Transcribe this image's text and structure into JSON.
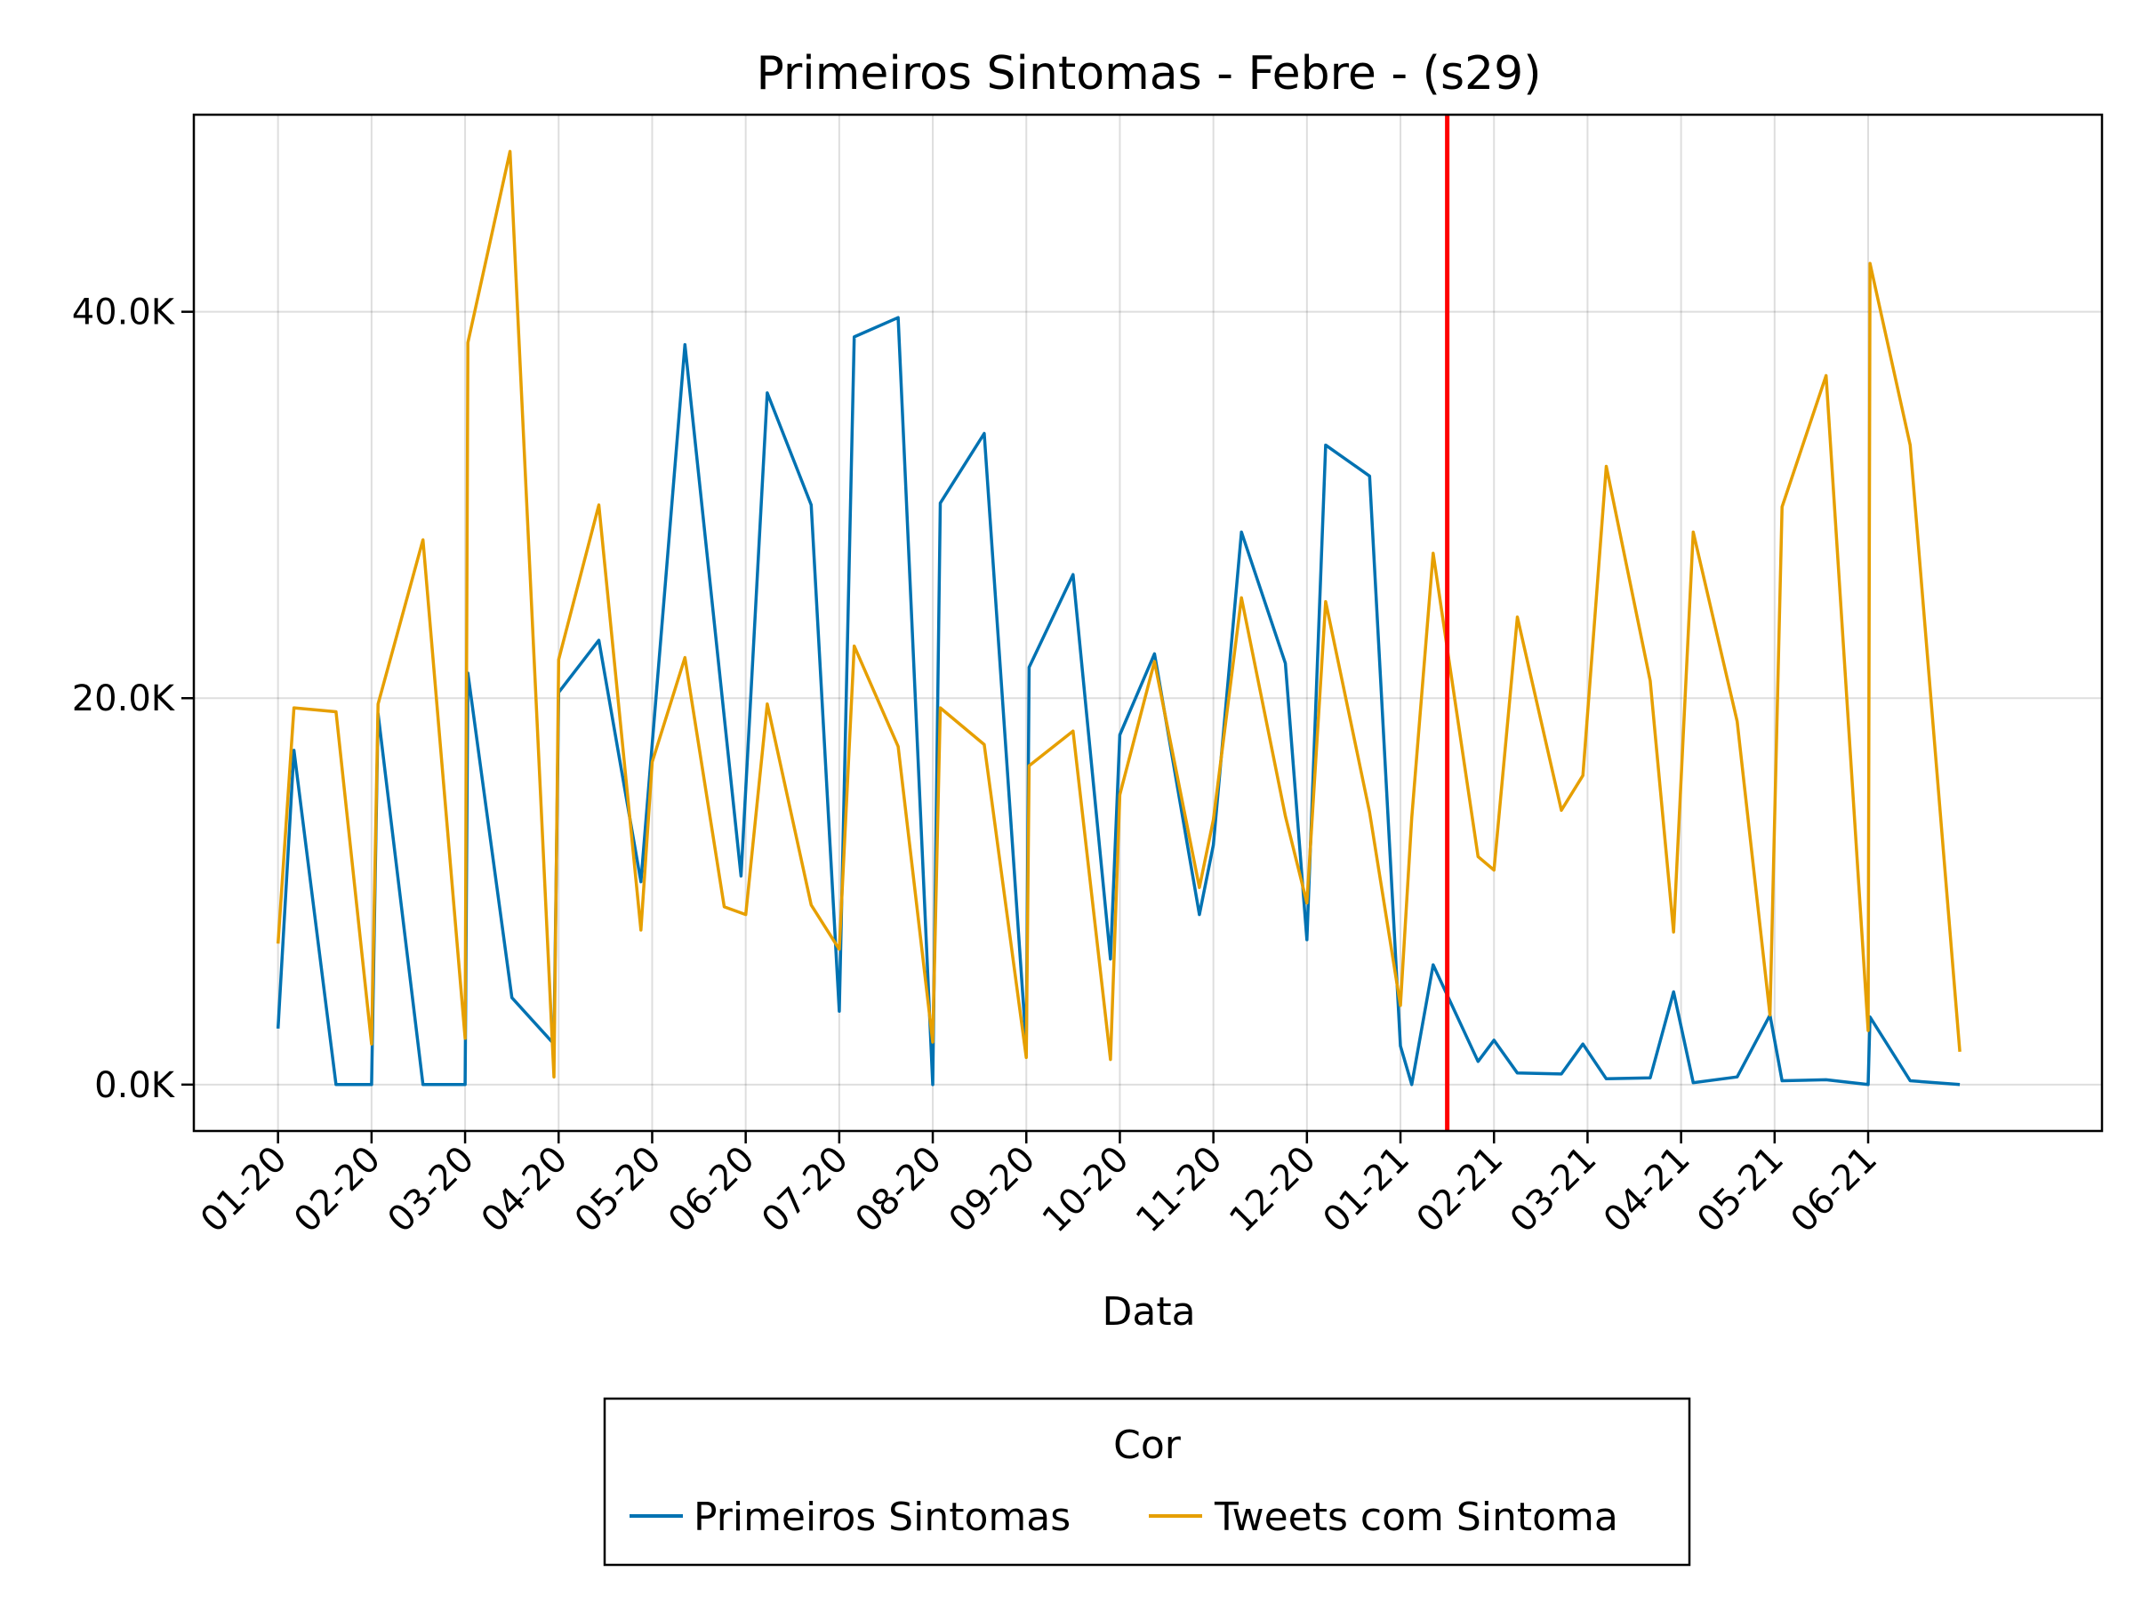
{
  "chart_data": {
    "type": "line",
    "title": "Primeiros Sintomas - Febre - (s29)",
    "xlabel": "Data",
    "ylabel": "",
    "x_tick_labels": [
      "01-20",
      "02-20",
      "03-20",
      "04-20",
      "05-20",
      "06-20",
      "07-20",
      "08-20",
      "09-20",
      "10-20",
      "11-20",
      "12-20",
      "01-21",
      "02-21",
      "03-21",
      "04-21",
      "05-21",
      "06-21"
    ],
    "y_tick_labels": [
      "0.0K",
      "20.0K",
      "40.0K"
    ],
    "y_tick_values": [
      0,
      20000,
      40000
    ],
    "ylim": [
      -2400,
      50200
    ],
    "xlim": [
      -0.9,
      19.5
    ],
    "grid": true,
    "legend_title": "Cor",
    "legend_position": "bottom",
    "marker_line": {
      "x": 12.5,
      "color": "#ff0000"
    },
    "series": [
      {
        "name": "Primeiros Sintomas",
        "color": "#0072b2",
        "points": [
          [
            0.0,
            2900
          ],
          [
            0.17,
            17300
          ],
          [
            0.62,
            0
          ],
          [
            1.0,
            0
          ],
          [
            1.07,
            19200
          ],
          [
            1.55,
            0
          ],
          [
            2.0,
            0
          ],
          [
            2.03,
            21300
          ],
          [
            2.5,
            4500
          ],
          [
            2.95,
            2100
          ],
          [
            3.0,
            20300
          ],
          [
            3.43,
            23000
          ],
          [
            3.88,
            10500
          ],
          [
            4.35,
            38300
          ],
          [
            4.95,
            10800
          ],
          [
            5.23,
            35800
          ],
          [
            5.7,
            30000
          ],
          [
            6.0,
            3800
          ],
          [
            6.16,
            38700
          ],
          [
            6.63,
            39700
          ],
          [
            7.0,
            0
          ],
          [
            7.08,
            30100
          ],
          [
            7.55,
            33700
          ],
          [
            8.0,
            2000
          ],
          [
            8.03,
            21600
          ],
          [
            8.5,
            26400
          ],
          [
            8.9,
            6500
          ],
          [
            9.0,
            18100
          ],
          [
            9.37,
            22300
          ],
          [
            9.85,
            8800
          ],
          [
            10.0,
            12400
          ],
          [
            10.3,
            28600
          ],
          [
            10.77,
            21800
          ],
          [
            11.0,
            7500
          ],
          [
            11.2,
            33100
          ],
          [
            11.67,
            31500
          ],
          [
            12.0,
            2000
          ],
          [
            12.12,
            0
          ],
          [
            12.35,
            6200
          ],
          [
            12.83,
            1200
          ],
          [
            13.0,
            2300
          ],
          [
            13.25,
            600
          ],
          [
            13.72,
            550
          ],
          [
            13.95,
            2100
          ],
          [
            14.2,
            300
          ],
          [
            14.67,
            350
          ],
          [
            14.92,
            4800
          ],
          [
            15.13,
            100
          ],
          [
            15.6,
            400
          ],
          [
            15.95,
            3600
          ],
          [
            16.08,
            200
          ],
          [
            16.55,
            250
          ],
          [
            17.0,
            0
          ],
          [
            17.02,
            3500
          ],
          [
            17.45,
            200
          ],
          [
            17.98,
            0
          ]
        ]
      },
      {
        "name": "Tweets com Sintoma",
        "color": "#e69f00",
        "points": [
          [
            0.0,
            7300
          ],
          [
            0.17,
            19500
          ],
          [
            0.62,
            19300
          ],
          [
            1.0,
            2100
          ],
          [
            1.07,
            19700
          ],
          [
            1.55,
            28200
          ],
          [
            2.0,
            2400
          ],
          [
            2.03,
            38400
          ],
          [
            2.48,
            48300
          ],
          [
            2.95,
            400
          ],
          [
            3.0,
            22000
          ],
          [
            3.43,
            30000
          ],
          [
            3.88,
            8000
          ],
          [
            4.0,
            16700
          ],
          [
            4.35,
            22100
          ],
          [
            4.77,
            9200
          ],
          [
            5.0,
            8800
          ],
          [
            5.23,
            19700
          ],
          [
            5.7,
            9300
          ],
          [
            6.0,
            7000
          ],
          [
            6.16,
            22700
          ],
          [
            6.63,
            17500
          ],
          [
            7.0,
            2200
          ],
          [
            7.08,
            19500
          ],
          [
            7.55,
            17600
          ],
          [
            8.0,
            1400
          ],
          [
            8.03,
            16500
          ],
          [
            8.5,
            18300
          ],
          [
            8.9,
            1300
          ],
          [
            9.0,
            15000
          ],
          [
            9.37,
            21900
          ],
          [
            9.85,
            10200
          ],
          [
            10.0,
            13700
          ],
          [
            10.3,
            25200
          ],
          [
            10.77,
            13900
          ],
          [
            11.0,
            9400
          ],
          [
            11.2,
            25000
          ],
          [
            11.67,
            14100
          ],
          [
            12.0,
            4100
          ],
          [
            12.12,
            13800
          ],
          [
            12.35,
            27500
          ],
          [
            12.83,
            11800
          ],
          [
            13.0,
            11100
          ],
          [
            13.25,
            24200
          ],
          [
            13.72,
            14200
          ],
          [
            13.95,
            16000
          ],
          [
            14.2,
            32000
          ],
          [
            14.67,
            20900
          ],
          [
            14.92,
            7900
          ],
          [
            15.13,
            28600
          ],
          [
            15.6,
            18800
          ],
          [
            15.95,
            3600
          ],
          [
            16.08,
            29900
          ],
          [
            16.55,
            36700
          ],
          [
            17.0,
            2800
          ],
          [
            17.02,
            42500
          ],
          [
            17.45,
            33100
          ],
          [
            17.98,
            1700
          ]
        ]
      }
    ]
  }
}
